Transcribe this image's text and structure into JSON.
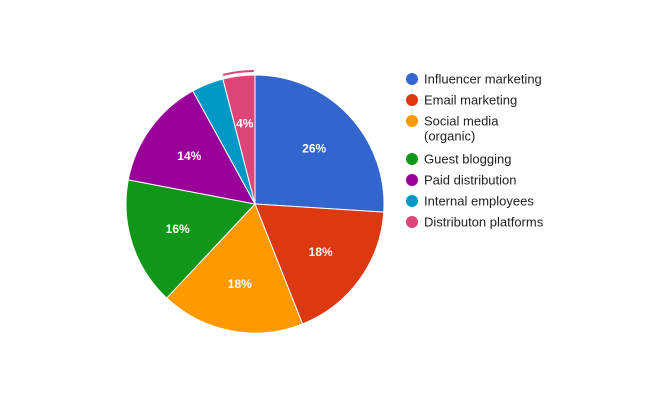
{
  "chart_data": {
    "type": "pie",
    "categories": [
      "Influencer marketing",
      "Email marketing",
      "Social media (organic)",
      "Guest blogging",
      "Paid distribution",
      "Internal employees",
      "Distributon platforms"
    ],
    "legend_lines": [
      [
        "Influencer marketing"
      ],
      [
        "Email marketing"
      ],
      [
        "Social media",
        "(organic)"
      ],
      [
        "Guest blogging"
      ],
      [
        "Paid distribution"
      ],
      [
        "Internal employees"
      ],
      [
        "Distributon platforms"
      ]
    ],
    "values": [
      26,
      18,
      18,
      16,
      14,
      4,
      4
    ],
    "labels": [
      "26%",
      "18%",
      "18%",
      "16%",
      "14%",
      "",
      "4%"
    ],
    "colors": [
      "#3366cc",
      "#dc3912",
      "#ff9900",
      "#109618",
      "#990099",
      "#0099c6",
      "#dd4477"
    ],
    "legend_position": "right",
    "start_angle_deg": 0,
    "highlighted_index": 6
  }
}
